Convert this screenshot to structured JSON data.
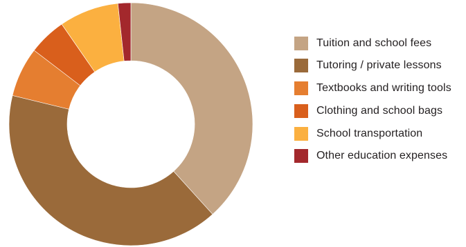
{
  "chart_data": {
    "type": "pie",
    "variant": "donut",
    "title": "",
    "legend_position": "right",
    "unit": "percent",
    "categories": [
      "Tuition and school fees",
      "Tutoring / private lessons",
      "Textbooks and writing tools",
      "Clothing and school bags",
      "School transportation",
      "Other education expenses"
    ],
    "values": [
      38.3,
      40.5,
      6.6,
      5.0,
      7.9,
      1.7
    ],
    "colors": [
      "#c4a484",
      "#9a6a3a",
      "#e57e30",
      "#d95f1c",
      "#fbb040",
      "#a3282c"
    ]
  }
}
